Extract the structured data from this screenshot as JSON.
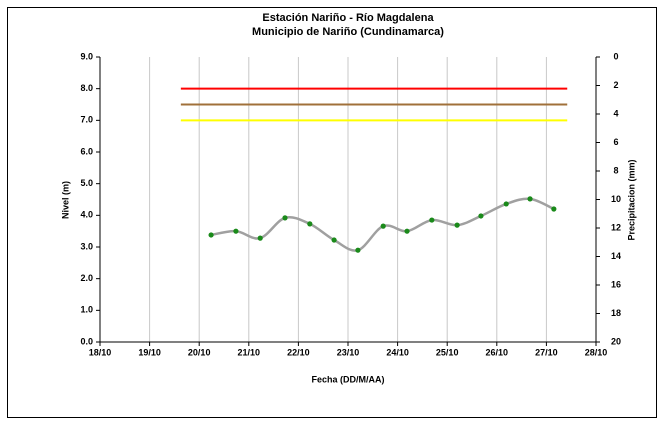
{
  "chart_data": {
    "type": "line",
    "title": [
      "Estación Nariño  - Río Magdalena",
      "Municipio de Nariño (Cundinamarca)"
    ],
    "xlabel": "Fecha (DD/M/AA)",
    "ylabel": "Nivel (m)",
    "y2label": "Precipitacion (mm)",
    "xlim": [
      18,
      28
    ],
    "xticks": [
      {
        "value": 18,
        "label": "18/10"
      },
      {
        "value": 19,
        "label": "19/10"
      },
      {
        "value": 20,
        "label": "20/10"
      },
      {
        "value": 21,
        "label": "21/10"
      },
      {
        "value": 22,
        "label": "22/10"
      },
      {
        "value": 23,
        "label": "23/10"
      },
      {
        "value": 24,
        "label": "24/10"
      },
      {
        "value": 25,
        "label": "25/10"
      },
      {
        "value": 26,
        "label": "26/10"
      },
      {
        "value": 27,
        "label": "27/10"
      },
      {
        "value": 28,
        "label": "28/10"
      }
    ],
    "ylim": [
      0,
      9
    ],
    "yticks": [
      {
        "value": 0,
        "label": "0.0"
      },
      {
        "value": 1,
        "label": "1.0"
      },
      {
        "value": 2,
        "label": "2.0"
      },
      {
        "value": 3,
        "label": "3.0"
      },
      {
        "value": 4,
        "label": "4.0"
      },
      {
        "value": 5,
        "label": "5.0"
      },
      {
        "value": 6,
        "label": "6.0"
      },
      {
        "value": 7,
        "label": "7.0"
      },
      {
        "value": 8,
        "label": "8.0"
      },
      {
        "value": 9,
        "label": "9.0"
      }
    ],
    "y2lim": [
      0,
      20
    ],
    "y2_inverted": true,
    "y2ticks": [
      0,
      2,
      4,
      6,
      8,
      10,
      12,
      14,
      16,
      18,
      20
    ],
    "grid": "x",
    "series": [
      {
        "color": "#ff0000",
        "x": [
          19.63,
          27.42
        ],
        "values": [
          8,
          8
        ]
      },
      {
        "color": "#a0703a",
        "x": [
          19.63,
          27.42
        ],
        "values": [
          7.5,
          7.5
        ]
      },
      {
        "color": "#ffff00",
        "x": [
          19.63,
          27.42
        ],
        "values": [
          7,
          7
        ]
      },
      {
        "color": "#a0a0a0",
        "marker_color": "#1a8a1a",
        "smooth": true,
        "x": [
          20.24,
          20.74,
          21.23,
          21.73,
          22.23,
          22.72,
          23.2,
          23.71,
          24.19,
          24.69,
          25.2,
          25.68,
          26.19,
          26.67,
          27.15
        ],
        "values": [
          3.38,
          3.5,
          3.28,
          3.92,
          3.73,
          3.22,
          2.9,
          3.66,
          3.5,
          3.85,
          3.69,
          3.98,
          4.36,
          4.52,
          4.2
        ]
      }
    ]
  }
}
